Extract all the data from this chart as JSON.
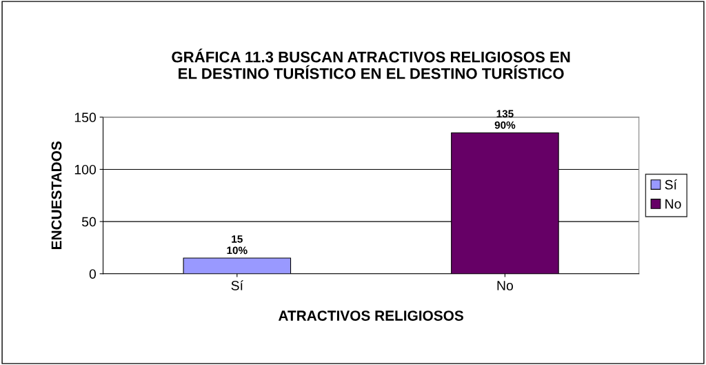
{
  "chart_data": {
    "type": "bar",
    "title": "GRÁFICA 11.3 BUSCAN ATRACTIVOS RELIGIOSOS EN\nEL DESTINO TURÍSTICO EN EL DESTINO TURÍSTICO",
    "xlabel": "ATRACTIVOS RELIGIOSOS",
    "ylabel": "ENCUESTADOS",
    "categories": [
      "Sí",
      "No"
    ],
    "series": [
      {
        "name": "Sí",
        "color": "#9999ff",
        "values": [
          15,
          null
        ],
        "value_labels": [
          "15\n10%",
          null
        ]
      },
      {
        "name": "No",
        "color": "#660066",
        "values": [
          null,
          135
        ],
        "value_labels": [
          null,
          "135\n90%"
        ]
      }
    ],
    "ylim": [
      0,
      150
    ],
    "yticks": [
      0,
      50,
      100,
      150
    ],
    "grid": "y",
    "legend": "right"
  }
}
